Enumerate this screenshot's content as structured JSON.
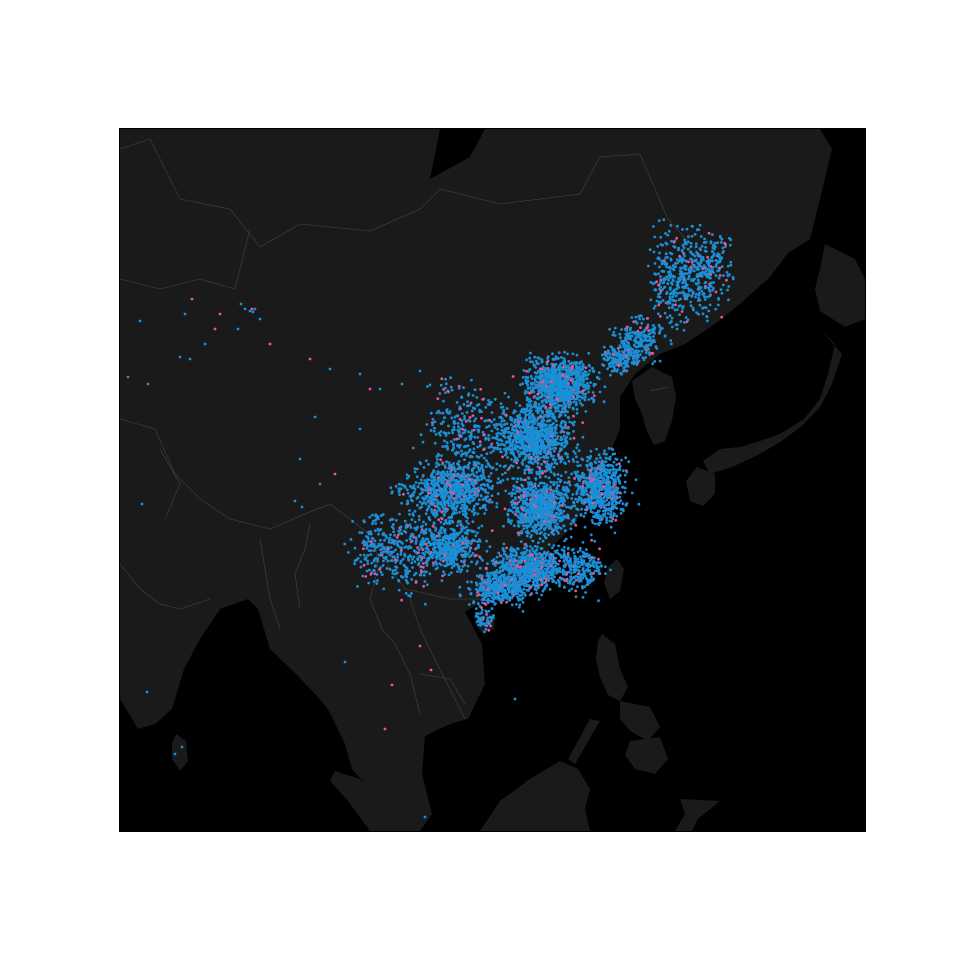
{
  "map": {
    "ocean_color": "#000000",
    "land_color": "#1a1a1a",
    "border_color": "#3a3a3a",
    "marker_colors": {
      "primary": "#1b8fd6",
      "secondary": "#e8559a"
    },
    "extent": {
      "lon_min": 74,
      "lon_max": 148,
      "lat_min": 2,
      "lat_max": 56
    },
    "legend": null,
    "title": ""
  }
}
